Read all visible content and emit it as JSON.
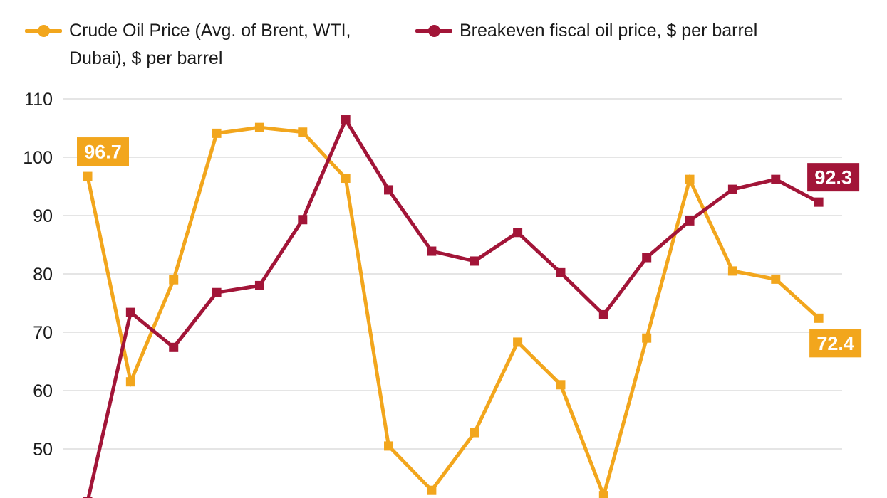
{
  "colors": {
    "crude": "#F2A61D",
    "breakeven": "#A21538",
    "grid": "#E5E5E5",
    "axis_text": "#1a1a1a",
    "label_text": "#ffffff",
    "background": "#ffffff"
  },
  "legend": {
    "items": [
      {
        "label": "Crude Oil Price (Avg. of Brent, WTI, Dubai), $ per barrel"
      },
      {
        "label": "Breakeven fiscal oil price, $ per barrel"
      }
    ]
  },
  "chart_data": {
    "type": "line",
    "title": "",
    "xlabel": "",
    "ylabel": "",
    "y_ticks": [
      110,
      100,
      90,
      80,
      70,
      60,
      50
    ],
    "ylim_visible": [
      42,
      112
    ],
    "grid": "horizontal",
    "legend_position": "top",
    "x_tick_labels_visible": false,
    "point_count": 18,
    "series": [
      {
        "name": "Crude Oil Price (Avg. of Brent, WTI, Dubai), $ per barrel",
        "slug": "crude-oil-price",
        "color": "#F2A61D",
        "marker": "square",
        "values": [
          96.7,
          61.5,
          79.0,
          104.1,
          105.1,
          104.3,
          96.4,
          50.5,
          42.9,
          52.8,
          68.3,
          61.0,
          42.0,
          69.0,
          96.2,
          80.5,
          79.1,
          72.4
        ]
      },
      {
        "name": "Breakeven fiscal oil price, $ per barrel",
        "slug": "breakeven-fiscal-oil-price",
        "color": "#A21538",
        "marker": "square",
        "values": [
          41.0,
          73.4,
          67.4,
          76.8,
          78.0,
          89.3,
          106.4,
          94.4,
          83.9,
          82.2,
          87.1,
          80.2,
          73.0,
          82.8,
          89.1,
          94.5,
          96.2,
          92.3
        ]
      }
    ],
    "point_labels": [
      {
        "series": 0,
        "index": 0,
        "text": "96.7"
      },
      {
        "series": 1,
        "index": 17,
        "text": "92.3"
      },
      {
        "series": 0,
        "index": 17,
        "text": "72.4"
      }
    ]
  }
}
